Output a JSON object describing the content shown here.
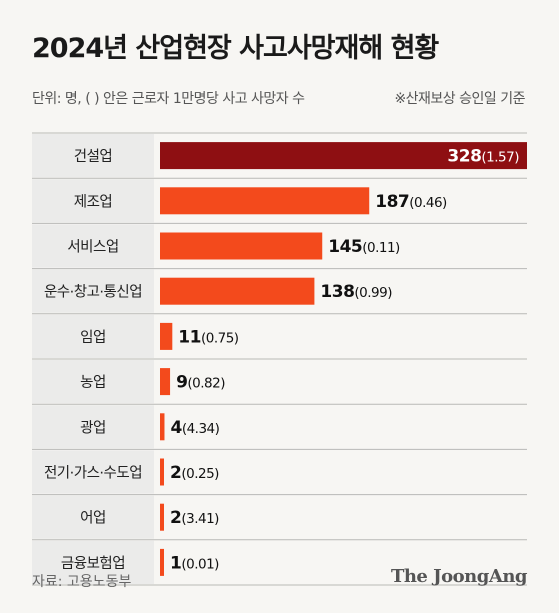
{
  "header": {
    "title": "2024년 산업현장 사고사망재해 현황",
    "subtitle": "단위: 명, ( ) 안은 근로자 1만명당 사고 사망자 수",
    "note": "※산재보상 승인일 기준"
  },
  "footer": {
    "source": "자료: 고용노동부",
    "logo": "The JoongAng"
  },
  "colors": {
    "highlight": "#8e0f12",
    "bar": "#f34a1c",
    "label_bg": "#ebebea",
    "row_line": "#b9b9b6"
  },
  "chart_data": {
    "type": "bar",
    "orientation": "horizontal",
    "categories": [
      "건설업",
      "제조업",
      "서비스업",
      "운수·창고·통신업",
      "임업",
      "농업",
      "광업",
      "전기·가스·수도업",
      "어업",
      "금융보험업"
    ],
    "values": [
      328,
      187,
      145,
      138,
      11,
      9,
      4,
      2,
      2,
      1
    ],
    "rates": [
      "1.57",
      "0.46",
      "0.11",
      "0.99",
      "0.75",
      "0.82",
      "4.34",
      "0.25",
      "3.41",
      "0.01"
    ],
    "highlight_index": 0,
    "xlim": [
      0,
      328
    ]
  }
}
